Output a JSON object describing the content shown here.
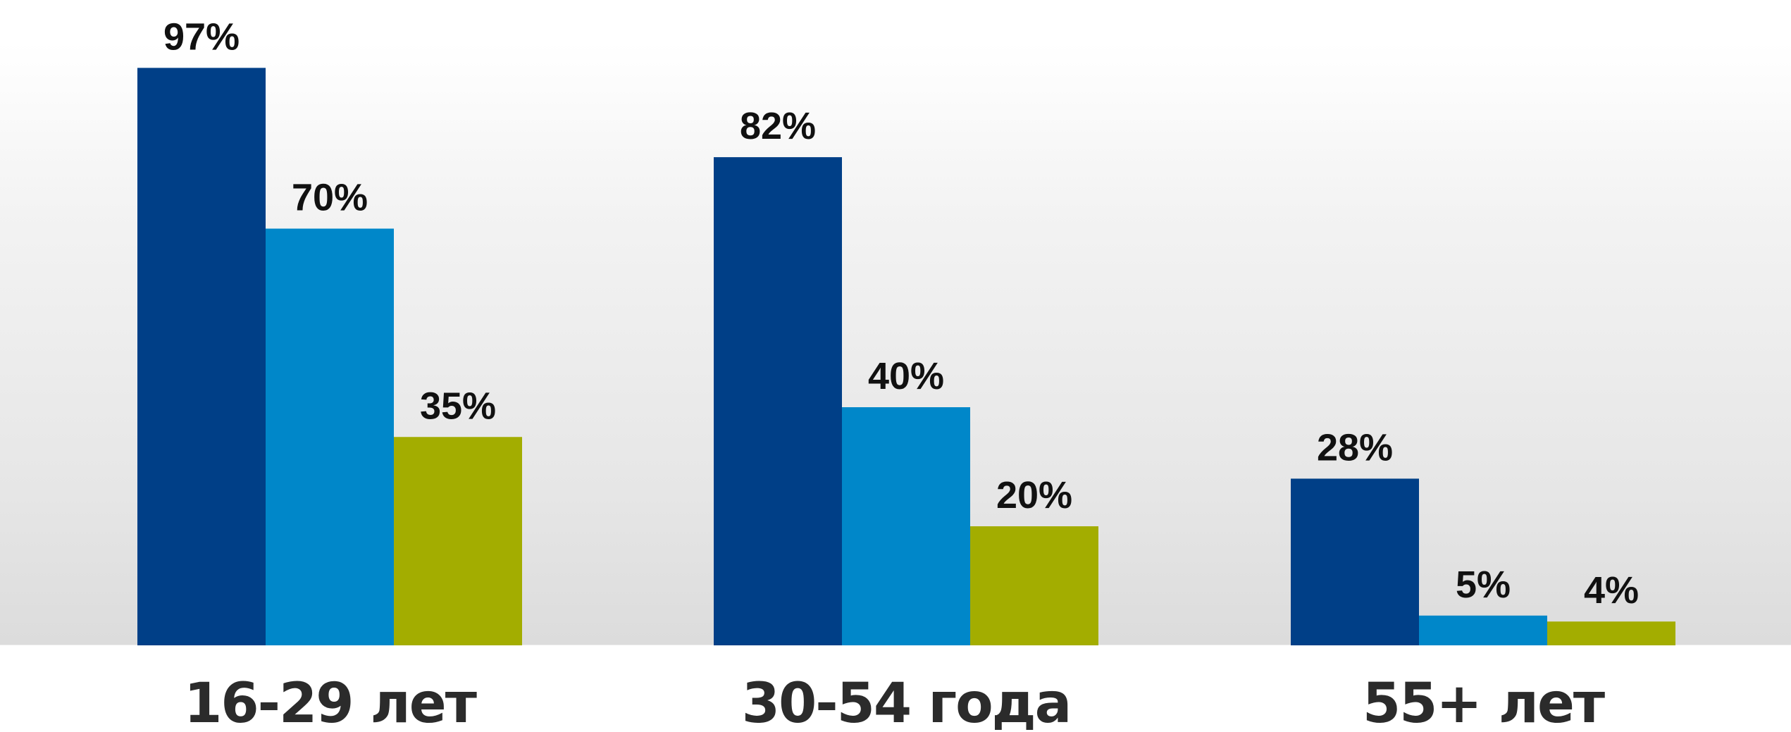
{
  "chart_data": {
    "type": "bar",
    "title": "",
    "xlabel": "",
    "ylabel": "",
    "categories": [
      "16-29 лет",
      "30-54 года",
      "55+ лет"
    ],
    "series": [
      {
        "color": "#003f87",
        "values": [
          97,
          82,
          28
        ],
        "labels": [
          "97%",
          "82%",
          "28%"
        ]
      },
      {
        "color": "#0087c9",
        "values": [
          70,
          40,
          5
        ],
        "labels": [
          "70%",
          "40%",
          "5%"
        ]
      },
      {
        "color": "#a3ad00",
        "values": [
          35,
          20,
          4
        ],
        "labels": [
          "35%",
          "20%",
          "4%"
        ]
      }
    ],
    "ylim": [
      0,
      100
    ],
    "grid": false,
    "legend": "none"
  }
}
